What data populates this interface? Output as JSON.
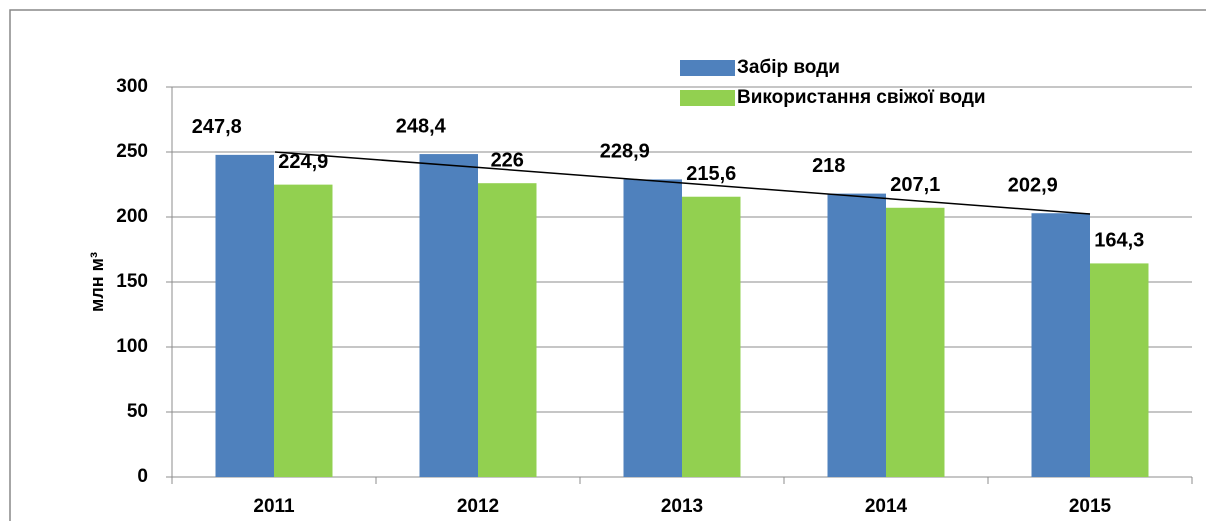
{
  "chart_data": {
    "type": "bar",
    "ylabel": "млн м³",
    "categories": [
      "2011",
      "2012",
      "2013",
      "2014",
      "2015"
    ],
    "series": [
      {
        "name": "Забір води",
        "color": "#4f81bd",
        "values": [
          247.8,
          248.4,
          228.9,
          218,
          202.9
        ],
        "value_labels": [
          "247,8",
          "248,4",
          "228,9",
          "218",
          "202,9"
        ]
      },
      {
        "name": "Використання свіжої води",
        "color": "#92d050",
        "values": [
          224.9,
          226,
          215.6,
          207.1,
          164.3
        ],
        "value_labels": [
          "224,9",
          "226",
          "215,6",
          "207,1",
          "164,3"
        ]
      }
    ],
    "ylim": [
      0,
      300
    ],
    "yticks": [
      0,
      50,
      100,
      150,
      200,
      250,
      300
    ],
    "grid": true
  }
}
